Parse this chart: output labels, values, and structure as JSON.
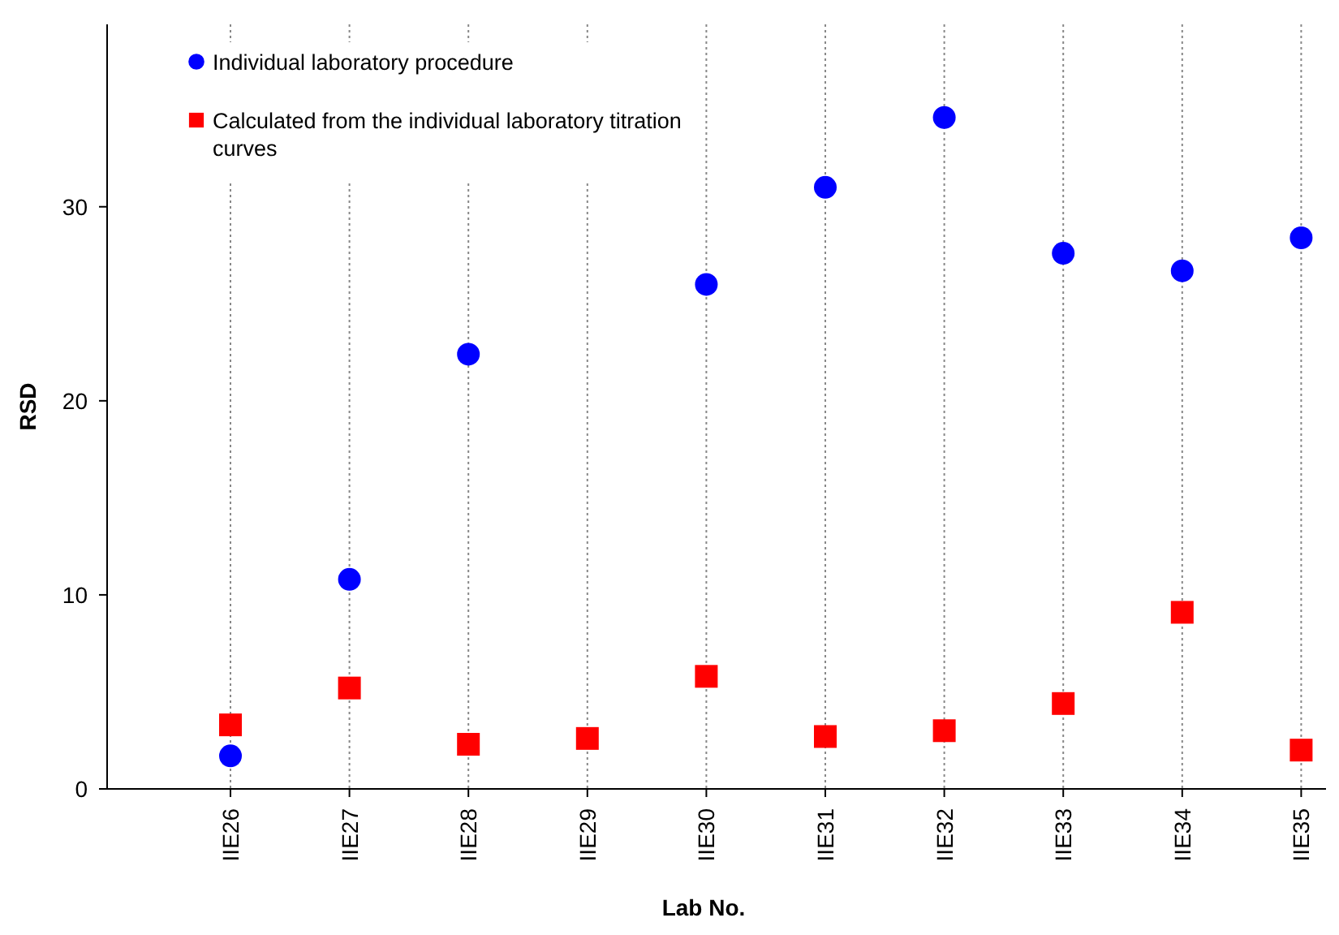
{
  "chart_data": {
    "type": "scatter",
    "xlabel": "Lab No.",
    "ylabel": "RSD",
    "categories": [
      "IIE26",
      "IIE27",
      "IIE28",
      "IIE29",
      "IIE30",
      "IIE31",
      "IIE32",
      "IIE33",
      "IIE34",
      "IIE35"
    ],
    "ylim": [
      0,
      39.4
    ],
    "yticks": [
      0,
      10,
      20,
      30
    ],
    "grid": "x",
    "legend": "top left",
    "series": [
      {
        "name": "Individual laboratory procedure",
        "color": "#0000ff",
        "marker": "circle",
        "values": [
          1.7,
          10.8,
          22.4,
          null,
          26.0,
          31.0,
          34.6,
          27.6,
          26.7,
          28.4
        ]
      },
      {
        "name": "Calculated from the individual laboratory titration curves",
        "color": "#ff0000",
        "marker": "square",
        "values": [
          3.3,
          5.2,
          2.3,
          2.6,
          5.8,
          2.7,
          3.0,
          4.4,
          9.1,
          2.0
        ]
      }
    ]
  }
}
